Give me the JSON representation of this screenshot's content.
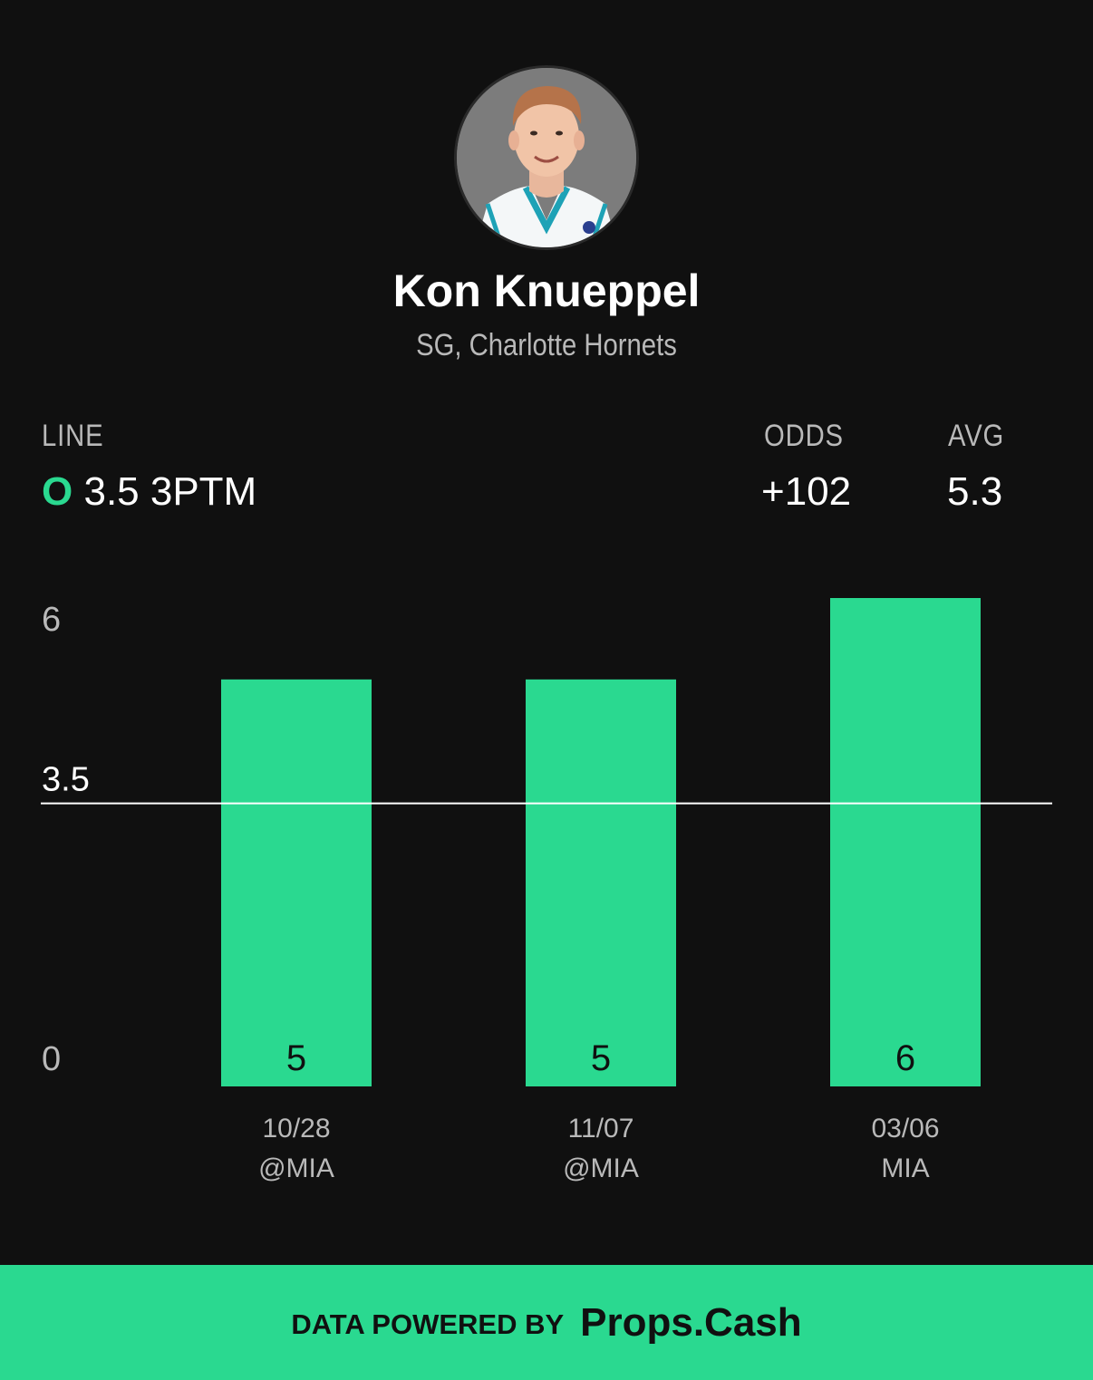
{
  "player": {
    "name": "Kon Knueppel",
    "subtitle": "SG, Charlotte Hornets"
  },
  "stats": {
    "line_label": "LINE",
    "line_direction": "O",
    "line_value": "3.5 3PTM",
    "odds_label": "ODDS",
    "odds_value": "+102",
    "avg_label": "AVG",
    "avg_value": "5.3"
  },
  "colors": {
    "background": "#101010",
    "accent": "#2ad990",
    "muted_text": "#b9b9b9"
  },
  "chart_data": {
    "type": "bar",
    "categories": [
      "10/28",
      "11/07",
      "03/06"
    ],
    "opponents": [
      "@MIA",
      "@MIA",
      "MIA"
    ],
    "values": [
      5,
      5,
      6
    ],
    "value_labels": [
      "5",
      "5",
      "6"
    ],
    "ylim": [
      0,
      6
    ],
    "y_ticks": [
      "0",
      "6"
    ],
    "reference_line": {
      "value": 3.5,
      "label": "3.5"
    },
    "grid": false
  },
  "footer": {
    "prefix": "DATA POWERED BY",
    "brand": "Props.Cash"
  }
}
